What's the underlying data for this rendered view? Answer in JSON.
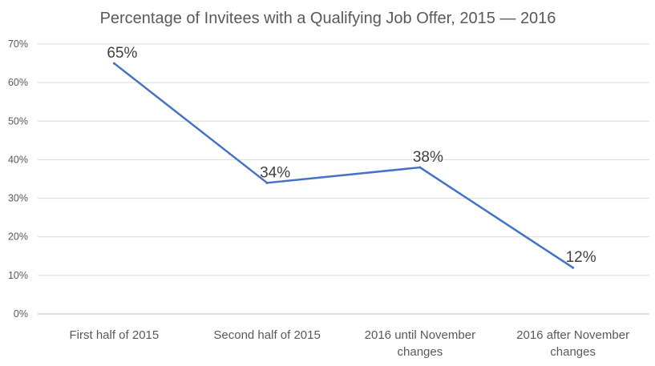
{
  "chart_data": {
    "type": "line",
    "title": "Percentage of Invitees with a Qualifying Job Offer, 2015 — 2016",
    "xlabel": "",
    "ylabel": "",
    "categories": [
      [
        "First half of 2015"
      ],
      [
        "Second half of 2015"
      ],
      [
        "2016 until November",
        "changes"
      ],
      [
        "2016 after November",
        "changes"
      ]
    ],
    "series": [
      {
        "values": [
          65,
          34,
          38,
          12
        ],
        "data_labels": [
          "65%",
          "34%",
          "38%",
          "12%"
        ],
        "color": "#4472c4"
      }
    ],
    "ylim": [
      0,
      70
    ],
    "yticks": [
      "0%",
      "10%",
      "20%",
      "30%",
      "40%",
      "50%",
      "60%",
      "70%"
    ],
    "grid": true,
    "legend": "none"
  }
}
